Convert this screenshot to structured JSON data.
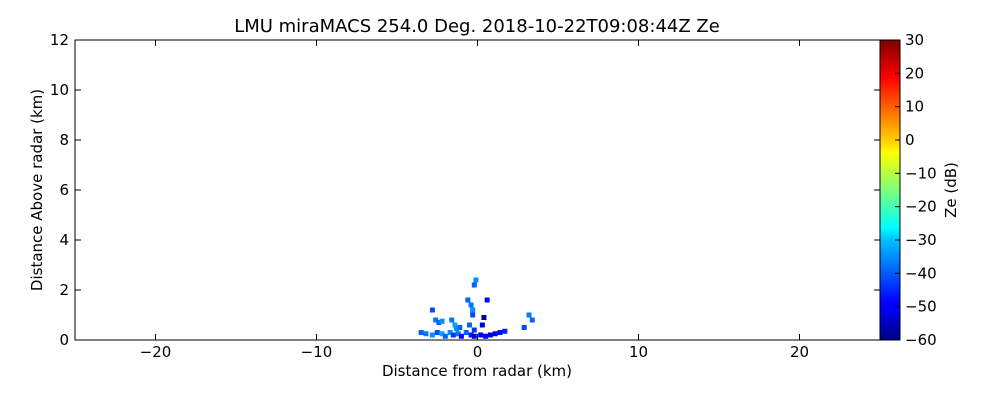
{
  "chart_data": {
    "type": "heatmap",
    "title": "LMU miraMACS 254.0 Deg. 2018-10-22T09:08:44Z  Ze",
    "xlabel": "Distance from radar (km)",
    "ylabel": "Distance Above radar  (km)",
    "xlim": [
      -25,
      25
    ],
    "ylim": [
      0,
      12
    ],
    "x_ticks": [
      -20,
      -10,
      0,
      10,
      20
    ],
    "x_tick_labels": [
      "−20",
      "−10",
      "0",
      "10",
      "20"
    ],
    "y_ticks": [
      0,
      2,
      4,
      6,
      8,
      10,
      12
    ],
    "y_tick_labels": [
      "0",
      "2",
      "4",
      "6",
      "8",
      "10",
      "12"
    ],
    "grid": false,
    "colorbar": {
      "label": "Ze (dB)",
      "range": [
        -60,
        30
      ],
      "ticks": [
        -60,
        -50,
        -40,
        -30,
        -20,
        -10,
        0,
        10,
        20,
        30
      ],
      "tick_labels": [
        "−60",
        "−50",
        "−40",
        "−30",
        "−20",
        "−10",
        "0",
        "10",
        "20",
        "30"
      ],
      "colormap": "jet"
    },
    "points": [
      {
        "x": -3.5,
        "y": 0.3,
        "z": -40
      },
      {
        "x": -3.2,
        "y": 0.25,
        "z": -38
      },
      {
        "x": -2.8,
        "y": 0.2,
        "z": -36
      },
      {
        "x": -2.5,
        "y": 0.3,
        "z": -42
      },
      {
        "x": -2.2,
        "y": 0.25,
        "z": -34
      },
      {
        "x": -2.0,
        "y": 0.15,
        "z": -40
      },
      {
        "x": -1.7,
        "y": 0.3,
        "z": -36
      },
      {
        "x": -1.5,
        "y": 0.2,
        "z": -44
      },
      {
        "x": -1.2,
        "y": 0.25,
        "z": -38
      },
      {
        "x": -1.0,
        "y": 0.15,
        "z": -48
      },
      {
        "x": -0.7,
        "y": 0.3,
        "z": -40
      },
      {
        "x": -0.4,
        "y": 0.2,
        "z": -46
      },
      {
        "x": -0.2,
        "y": 0.15,
        "z": -52
      },
      {
        "x": 0.2,
        "y": 0.2,
        "z": -50
      },
      {
        "x": 0.5,
        "y": 0.15,
        "z": -48
      },
      {
        "x": 0.8,
        "y": 0.2,
        "z": -52
      },
      {
        "x": 1.1,
        "y": 0.25,
        "z": -50
      },
      {
        "x": 1.4,
        "y": 0.3,
        "z": -48
      },
      {
        "x": 1.7,
        "y": 0.35,
        "z": -46
      },
      {
        "x": -2.6,
        "y": 0.8,
        "z": -38
      },
      {
        "x": -2.4,
        "y": 0.7,
        "z": -40
      },
      {
        "x": -2.2,
        "y": 0.75,
        "z": -36
      },
      {
        "x": -2.8,
        "y": 1.2,
        "z": -42
      },
      {
        "x": -1.6,
        "y": 0.8,
        "z": -38
      },
      {
        "x": -1.4,
        "y": 0.6,
        "z": -34
      },
      {
        "x": -1.3,
        "y": 0.45,
        "z": -36
      },
      {
        "x": -1.1,
        "y": 0.5,
        "z": -40
      },
      {
        "x": -0.6,
        "y": 1.6,
        "z": -40
      },
      {
        "x": -0.4,
        "y": 1.4,
        "z": -38
      },
      {
        "x": -0.3,
        "y": 1.2,
        "z": -36
      },
      {
        "x": -0.3,
        "y": 1.0,
        "z": -42
      },
      {
        "x": -0.5,
        "y": 0.6,
        "z": -40
      },
      {
        "x": -0.2,
        "y": 0.4,
        "z": -44
      },
      {
        "x": 0.3,
        "y": 0.6,
        "z": -52
      },
      {
        "x": 0.4,
        "y": 0.9,
        "z": -56
      },
      {
        "x": 0.6,
        "y": 1.6,
        "z": -48
      },
      {
        "x": -0.1,
        "y": 2.4,
        "z": -36
      },
      {
        "x": -0.2,
        "y": 2.2,
        "z": -40
      },
      {
        "x": 3.2,
        "y": 1.0,
        "z": -38
      },
      {
        "x": 3.4,
        "y": 0.8,
        "z": -40
      },
      {
        "x": 2.9,
        "y": 0.5,
        "z": -42
      }
    ]
  }
}
